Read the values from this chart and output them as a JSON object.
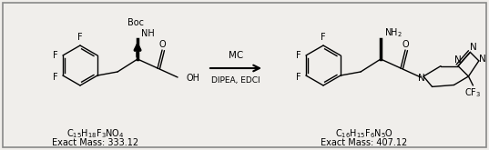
{
  "figure_width": 5.37,
  "figure_height": 1.65,
  "dpi": 100,
  "bg_color": "#f0eeeb",
  "border_color": "#888888",
  "reactant_formula": "C$_{15}$H$_{18}$F$_{3}$NO$_{4}$",
  "reactant_mass_label": "Exact Mass: 333.12",
  "product_formula": "C$_{16}$H$_{15}$F$_{6}$N$_{5}$O",
  "product_mass_label": "Exact Mass: 407.12",
  "arrow_label_top": "MC",
  "arrow_label_bottom": "DIPEA, EDCl",
  "formula_fontsize": 7.0,
  "label_fontsize": 7.0,
  "arrow_label_fontsize": 7.5
}
